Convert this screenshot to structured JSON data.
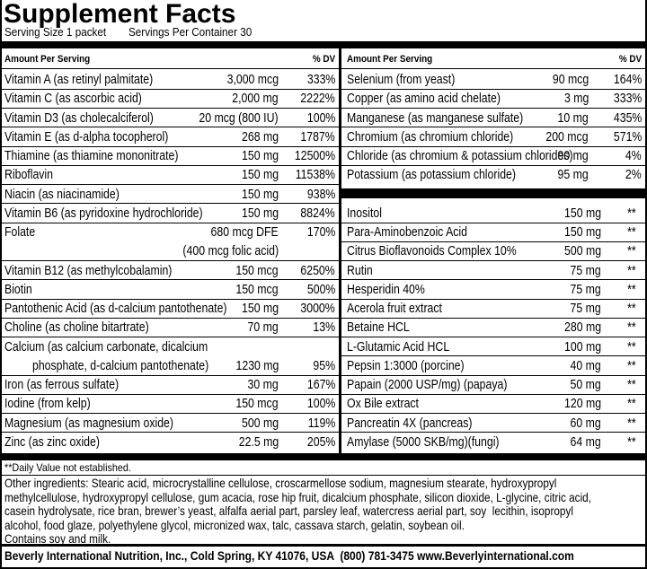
{
  "title": "Supplement Facts",
  "serving_size": "Serving Size 1 packet",
  "servings_per_container": "Servings Per Container 30",
  "left": {
    "header": {
      "amount": "Amount Per Serving",
      "dv": "% DV"
    },
    "rows": [
      {
        "name": "Vitamin A (as retinyl palmitate)",
        "amount": "3,000 mcg",
        "dv": "333%"
      },
      {
        "name": "Vitamin C (as ascorbic acid)",
        "amount": "2,000 mg",
        "dv": "2222%"
      },
      {
        "name": "Vitamin D3 (as cholecalciferol)",
        "amount": "20 mcg (800 IU)",
        "dv": "100%"
      },
      {
        "name": "Vitamin E (as d-alpha tocopherol)",
        "amount": "268 mg",
        "dv": "1787%"
      },
      {
        "name": "Thiamine (as thiamine mononitrate)",
        "amount": "150 mg",
        "dv": "12500%"
      },
      {
        "name": "Riboflavin",
        "amount": "150 mg",
        "dv": "11538%"
      },
      {
        "name": "Niacin (as niacinamide)",
        "amount": "150 mg",
        "dv": "938%"
      },
      {
        "name": "Vitamin B6 (as pyridoxine hydrochloride)",
        "amount": "150 mg",
        "dv": "8824%"
      },
      {
        "name": "Folate",
        "amount": "680 mcg DFE",
        "amount_cont": "(400 mcg folic acid)",
        "dv": "170%"
      },
      {
        "name": "Vitamin B12 (as methylcobalamin)",
        "amount": "150 mcg",
        "dv": "6250%"
      },
      {
        "name": "Biotin",
        "amount": "150 mcg",
        "dv": "500%"
      },
      {
        "name": "Pantothenic Acid (as d-calcium pantothenate)",
        "amount": "150 mg",
        "dv": "3000%"
      },
      {
        "name": "Choline (as choline bitartrate)",
        "amount": "70 mg",
        "dv": "13%"
      },
      {
        "name": "Calcium (as calcium carbonate, dicalcium",
        "name_cont": "phosphate, d-calcium pantothenate)",
        "amount": "1230 mg",
        "dv": "95%"
      },
      {
        "name": "Iron (as ferrous sulfate)",
        "amount": "30 mg",
        "dv": "167%"
      },
      {
        "name": "Iodine (from kelp)",
        "amount": "150 mcg",
        "dv": "100%"
      },
      {
        "name": "Magnesium (as magnesium oxide)",
        "amount": "500 mg",
        "dv": "119%"
      },
      {
        "name": "Zinc (as zinc oxide)",
        "amount": "22.5 mg",
        "dv": "205%"
      }
    ]
  },
  "right": {
    "header": {
      "amount": "Amount Per Serving",
      "dv": "% DV"
    },
    "rows_top": [
      {
        "name": "Selenium (from yeast)",
        "amount": "90 mcg",
        "dv": "164%"
      },
      {
        "name": "Copper (as amino acid chelate)",
        "amount": "3 mg",
        "dv": "333%"
      },
      {
        "name": "Manganese (as manganese sulfate)",
        "amount": "10 mg",
        "dv": "435%"
      },
      {
        "name": "Chromium (as chromium chloride)",
        "amount": "200 mcg",
        "dv": "571%"
      },
      {
        "name": "Chloride (as chromium & potassium chlorides)",
        "amount": "90 mg",
        "dv": "4%"
      },
      {
        "name": "Potassium (as potassium chloride)",
        "amount": "95 mg",
        "dv": "2%"
      }
    ],
    "rows_bottom": [
      {
        "name": "Inositol",
        "amount": "150 mg",
        "dv": "**"
      },
      {
        "name": "Para-Aminobenzoic Acid",
        "amount": "150 mg",
        "dv": "**"
      },
      {
        "name": "Citrus Bioflavonoids Complex 10%",
        "amount": "500 mg",
        "dv": "**"
      },
      {
        "name": "Rutin",
        "amount": "75 mg",
        "dv": "**"
      },
      {
        "name": "Hesperidin 40%",
        "amount": "75 mg",
        "dv": "**"
      },
      {
        "name": "Acerola fruit extract",
        "amount": "75 mg",
        "dv": "**"
      },
      {
        "name": "Betaine HCL",
        "amount": "280 mg",
        "dv": "**"
      },
      {
        "name": "L-Glutamic Acid HCL",
        "amount": "100 mg",
        "dv": "**"
      },
      {
        "name": "Pepsin 1:3000 (porcine)",
        "amount": "40 mg",
        "dv": "**"
      },
      {
        "name": "Papain (2000 USP/mg) (papaya)",
        "amount": "50 mg",
        "dv": "**"
      },
      {
        "name": "Ox Bile extract",
        "amount": "120 mg",
        "dv": "**"
      },
      {
        "name": "Pancreatin 4X (pancreas)",
        "amount": "60 mg",
        "dv": "**"
      },
      {
        "name": "Amylase (5000 SKB/mg)(fungi)",
        "amount": "64 mg",
        "dv": "**"
      }
    ]
  },
  "footnote": "**Daily Value not established.",
  "ingredients": [
    "Other ingredients: Stearic acid, microcrystalline cellulose, croscarmellose sodium, magnesium stearate, hydroxypropyl",
    "methylcellulose, hydroxypropyl cellulose, gum acacia, rose hip fruit, dicalcium phosphate, silicon dioxide, L-glycine, citric acid,",
    "casein hydrolysate, rice bran, brewer’s yeast, alfalfa aerial part, parsley leaf, watercress aerial part, soy  lecithin, isopropyl",
    "alcohol, food glaze, polyethylene glycol, micronized wax, talc, cassava starch, gelatin, soybean oil.",
    "Contains soy and milk."
  ],
  "company": "Beverly International Nutrition, Inc., Cold Spring, KY 41076, USA  (800) 781-3475 www.Beverlyinternational.com"
}
